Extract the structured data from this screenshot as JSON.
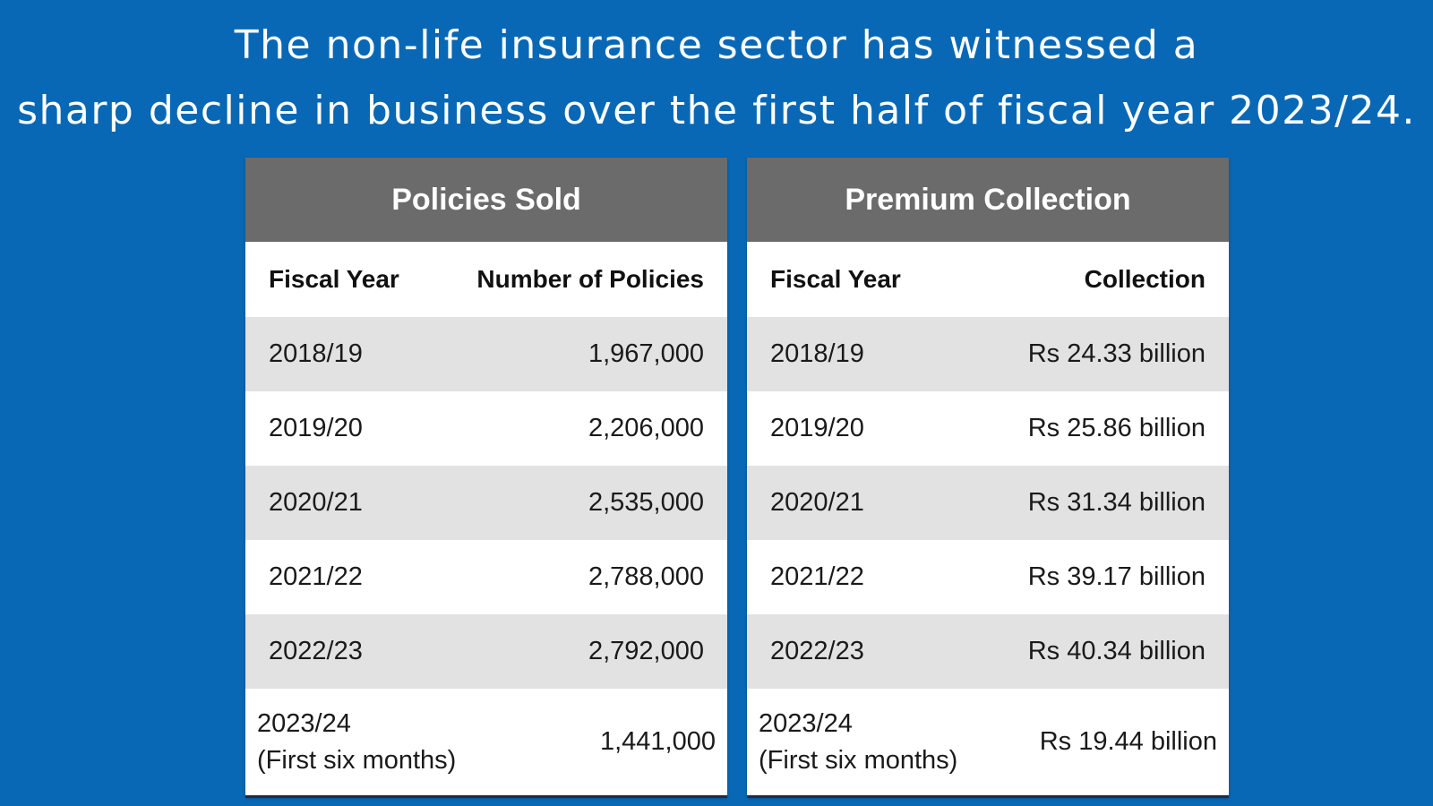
{
  "headline": {
    "line1": "The non-life insurance sector has witnessed a",
    "line2": "sharp decline in business over the first half of fiscal year 2023/24."
  },
  "colors": {
    "background": "#0868B5",
    "title_bar": "#6B6B6B",
    "shaded_row": "#E2E2E2"
  },
  "policies": {
    "title": "Policies Sold",
    "col_year": "Fiscal Year",
    "col_value_line1": "Number of",
    "col_value_line2": "Policies",
    "rows": [
      {
        "year": "2018/19",
        "value": "1,967,000"
      },
      {
        "year": "2019/20",
        "value": "2,206,000"
      },
      {
        "year": "2020/21",
        "value": "2,535,000"
      },
      {
        "year": "2021/22",
        "value": "2,788,000"
      },
      {
        "year": "2022/23",
        "value": "2,792,000"
      },
      {
        "year": "2023/24",
        "year_note": "(First six months)",
        "value": "1,441,000"
      }
    ]
  },
  "premium": {
    "title": "Premium Collection",
    "col_year": "Fiscal Year",
    "col_value": "Collection",
    "rows": [
      {
        "year": "2018/19",
        "value": "Rs 24.33 billion"
      },
      {
        "year": "2019/20",
        "value": "Rs 25.86 billion"
      },
      {
        "year": "2020/21",
        "value": "Rs 31.34 billion"
      },
      {
        "year": "2021/22",
        "value": "Rs 39.17 billion"
      },
      {
        "year": "2022/23",
        "value": "Rs 40.34 billion"
      },
      {
        "year": "2023/24",
        "year_note": "(First six months)",
        "value": "Rs 19.44 billion"
      }
    ]
  },
  "chart_data": [
    {
      "type": "table",
      "title": "Policies Sold",
      "columns": [
        "Fiscal Year",
        "Number of Policies"
      ],
      "categories": [
        "2018/19",
        "2019/20",
        "2020/21",
        "2021/22",
        "2022/23",
        "2023/24 (First six months)"
      ],
      "values": [
        1967000,
        2206000,
        2535000,
        2788000,
        2792000,
        1441000
      ]
    },
    {
      "type": "table",
      "title": "Premium Collection",
      "columns": [
        "Fiscal Year",
        "Collection"
      ],
      "categories": [
        "2018/19",
        "2019/20",
        "2020/21",
        "2021/22",
        "2022/23",
        "2023/24 (First six months)"
      ],
      "values": [
        24.33,
        25.86,
        31.34,
        39.17,
        40.34,
        19.44
      ]
    }
  ]
}
